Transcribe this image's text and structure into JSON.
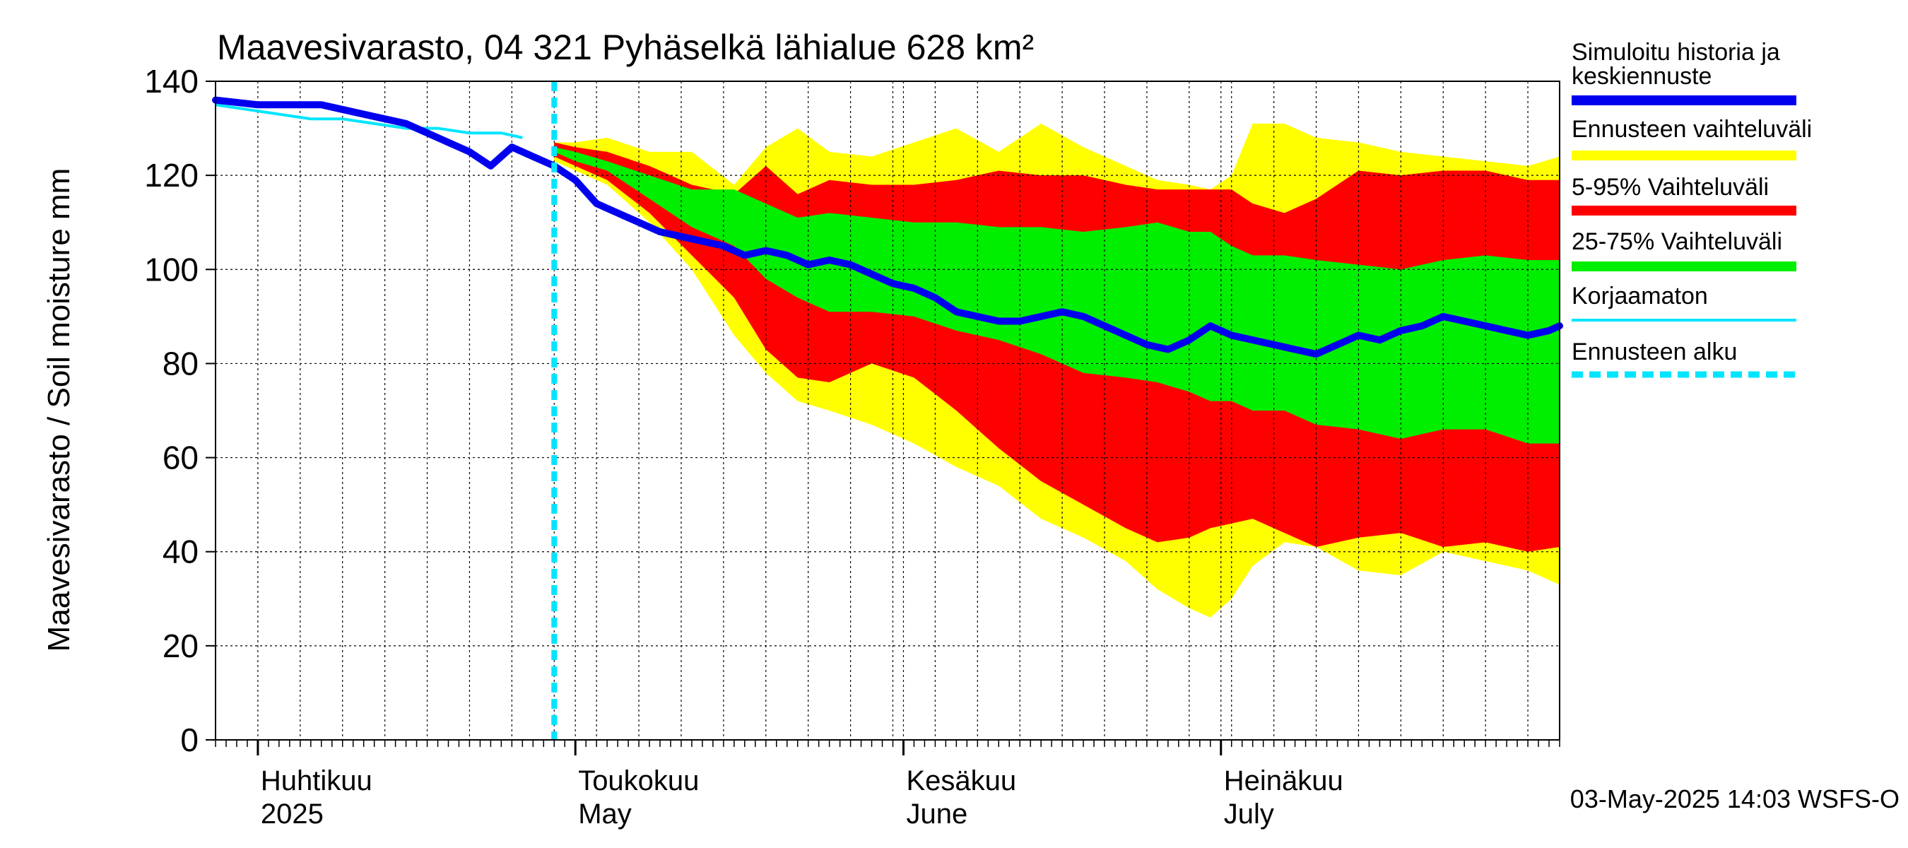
{
  "chart_data": {
    "type": "area",
    "title": "Maavesivarasto, 04 321 Pyhäselkä lähialue 628 km²",
    "ylabel": "Maavesivarasto / Soil moisture   mm",
    "ylim": [
      0,
      140
    ],
    "yticks": [
      0,
      20,
      40,
      60,
      80,
      100,
      120,
      140
    ],
    "x_range_days": [
      0,
      127
    ],
    "x_start_date": "2025-03-28",
    "forecast_start_day": 32,
    "month_labels": [
      {
        "day": 4,
        "line1": "Huhtikuu",
        "line2": "2025"
      },
      {
        "day": 34,
        "line1": "Toukokuu",
        "line2": "May"
      },
      {
        "day": 65,
        "line1": "Kesäkuu",
        "line2": "June"
      },
      {
        "day": 95,
        "line1": "Heinäkuu",
        "line2": "July"
      }
    ],
    "month_boundaries": [
      4,
      34,
      65,
      95
    ],
    "footer": "03-May-2025 14:03 WSFS-O",
    "legend": [
      {
        "label": "Simuloitu historia ja keskiennuste",
        "color": "#0000ee",
        "style": "thick"
      },
      {
        "label": "Ennusteen vaihteluväli",
        "color": "#ffff00",
        "style": "thick"
      },
      {
        "label": "5-95% Vaihteluväli",
        "color": "#ff0000",
        "style": "thick"
      },
      {
        "label": "25-75% Vaihteluväli",
        "color": "#00ee00",
        "style": "thick"
      },
      {
        "label": "Korjaamaton",
        "color": "#00e5ff",
        "style": "thin"
      },
      {
        "label": "Ennusteen alku",
        "color": "#00e5ff",
        "style": "dashed"
      }
    ],
    "bands": {
      "x": [
        32,
        34,
        37,
        41,
        45,
        49,
        52,
        55,
        58,
        62,
        66,
        70,
        74,
        78,
        82,
        86,
        89,
        92,
        94,
        96,
        98,
        101,
        104,
        108,
        112,
        116,
        120,
        124,
        127
      ],
      "env_hi": [
        127,
        127,
        128,
        125,
        125,
        118,
        126,
        130,
        125,
        124,
        127,
        130,
        125,
        131,
        126,
        122,
        119,
        118,
        117,
        120,
        131,
        131,
        128,
        127,
        125,
        124,
        123,
        122,
        124
      ],
      "env_lo": [
        123,
        121,
        118,
        110,
        100,
        86,
        78,
        72,
        70,
        67,
        63,
        58,
        54,
        47,
        43,
        38,
        32,
        28,
        26,
        30,
        37,
        42,
        41,
        36,
        35,
        40,
        38,
        36,
        33
      ],
      "p95": [
        127,
        126,
        125,
        122,
        118,
        116,
        122,
        116,
        119,
        118,
        118,
        119,
        121,
        120,
        120,
        118,
        117,
        117,
        117,
        117,
        114,
        112,
        115,
        121,
        120,
        121,
        121,
        119,
        119
      ],
      "p05": [
        124,
        122,
        119,
        112,
        103,
        94,
        83,
        77,
        76,
        80,
        77,
        70,
        62,
        55,
        50,
        45,
        42,
        43,
        45,
        46,
        47,
        44,
        41,
        43,
        44,
        41,
        42,
        40,
        41
      ],
      "p75": [
        126,
        125,
        123,
        120,
        117,
        117,
        114,
        111,
        112,
        111,
        110,
        110,
        109,
        109,
        108,
        109,
        110,
        108,
        108,
        105,
        103,
        103,
        102,
        101,
        100,
        102,
        103,
        102,
        102
      ],
      "p25": [
        125,
        123,
        121,
        115,
        109,
        105,
        98,
        94,
        91,
        91,
        90,
        87,
        85,
        82,
        78,
        77,
        76,
        74,
        72,
        72,
        70,
        70,
        67,
        66,
        64,
        66,
        66,
        63,
        63
      ]
    },
    "series": [
      {
        "name": "Simuloitu historia ja keskiennuste",
        "x": [
          0,
          2,
          4,
          6,
          8,
          10,
          12,
          14,
          16,
          18,
          20,
          22,
          24,
          26,
          28,
          30,
          31,
          32,
          34,
          36,
          38,
          40,
          42,
          44,
          46,
          48,
          50,
          52,
          54,
          56,
          58,
          60,
          62,
          64,
          66,
          68,
          70,
          72,
          74,
          76,
          78,
          80,
          82,
          84,
          86,
          88,
          90,
          92,
          94,
          96,
          98,
          100,
          102,
          104,
          106,
          108,
          110,
          112,
          114,
          116,
          118,
          120,
          122,
          124,
          126,
          127
        ],
        "values": [
          136,
          135.5,
          135,
          135,
          135,
          135,
          134,
          133,
          132,
          131,
          129,
          127,
          125,
          122,
          126,
          124,
          123,
          122,
          119,
          114,
          112,
          110,
          108,
          107,
          106,
          105,
          103,
          104,
          103,
          101,
          102,
          101,
          99,
          97,
          96,
          94,
          91,
          90,
          89,
          89,
          90,
          91,
          90,
          88,
          86,
          84,
          83,
          85,
          88,
          86,
          85,
          84,
          83,
          82,
          84,
          86,
          85,
          87,
          88,
          90,
          89,
          88,
          87,
          86,
          87,
          88
        ]
      },
      {
        "name": "Korjaamaton",
        "x": [
          0,
          3,
          6,
          9,
          12,
          15,
          18,
          21,
          24,
          27,
          29
        ],
        "values": [
          135,
          134,
          133,
          132,
          132,
          131,
          130,
          130,
          129,
          129,
          128
        ]
      }
    ]
  }
}
